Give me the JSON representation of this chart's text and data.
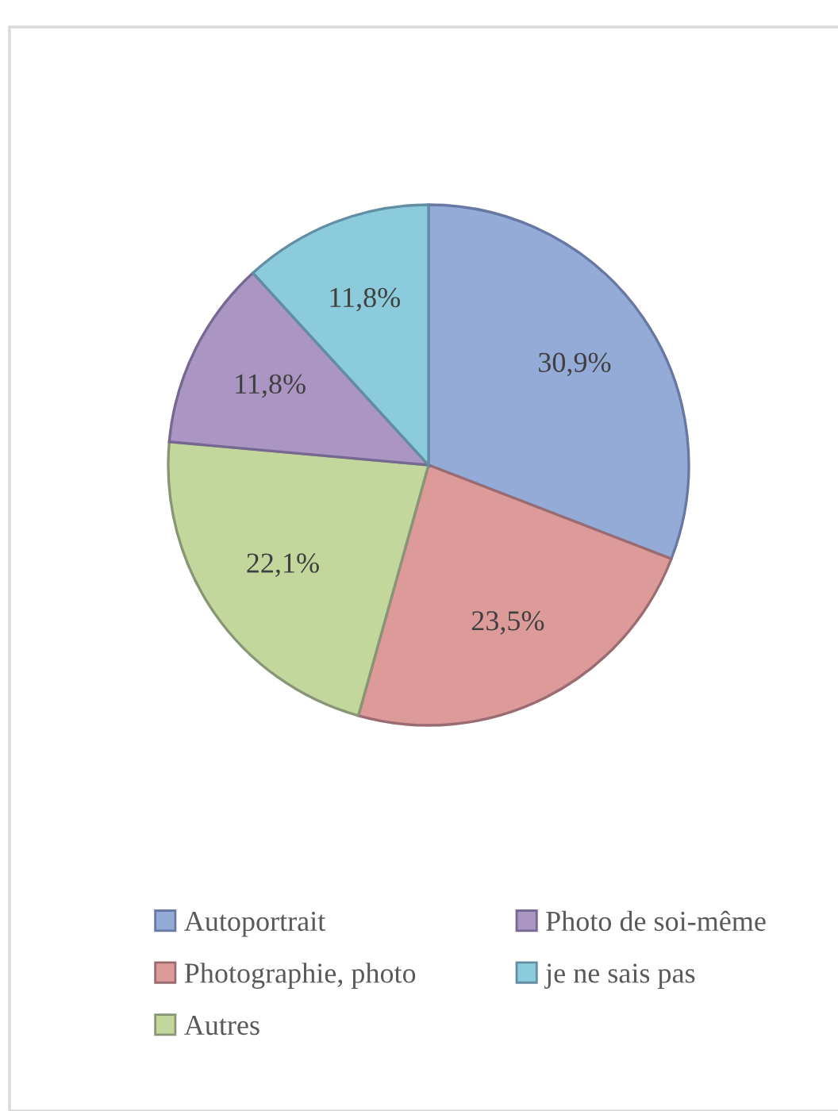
{
  "chart_data": {
    "type": "pie",
    "categories": [
      "Autoportrait",
      "Photographie, photo",
      "Autres",
      "Photo de soi-même",
      "je ne sais pas"
    ],
    "values": [
      30.9,
      23.5,
      22.1,
      11.8,
      11.8
    ],
    "colors": [
      "#94abd8",
      "#dc9a98",
      "#c3d79d",
      "#aa95c3",
      "#8ccbdb"
    ],
    "value_labels": [
      "30,9%",
      "23,5%",
      "22,1%",
      "11,8%",
      "11,8%"
    ],
    "legend": "bottom"
  }
}
